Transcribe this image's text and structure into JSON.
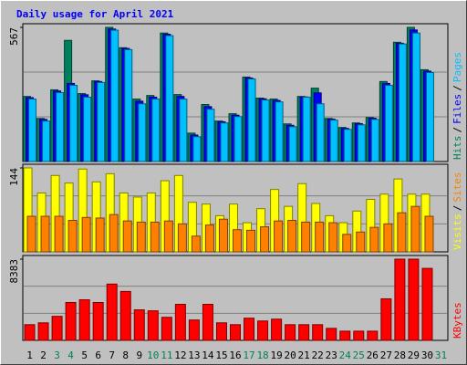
{
  "legend_separator": "/",
  "chart_data": [
    {
      "type": "bar",
      "title": "Daily usage for April 2021",
      "ylim": [
        0,
        567
      ],
      "yticks": [
        567
      ],
      "grid": [
        189,
        378
      ],
      "series": [
        {
          "name": "Hits",
          "color": "#00805c",
          "values": [
            275,
            182,
            303,
            512,
            287,
            341,
            567,
            481,
            264,
            279,
            543,
            283,
            120,
            241,
            171,
            202,
            357,
            268,
            264,
            159,
            275,
            310,
            182,
            144,
            163,
            186,
            338,
            504,
            567,
            388,
            0
          ]
        },
        {
          "name": "Files",
          "color": "#0000ff",
          "values": [
            270,
            178,
            298,
            330,
            282,
            338,
            560,
            478,
            255,
            272,
            538,
            275,
            112,
            232,
            168,
            196,
            353,
            265,
            258,
            153,
            273,
            290,
            179,
            140,
            160,
            183,
            330,
            500,
            556,
            382,
            0
          ]
        },
        {
          "name": "Pages",
          "color": "#00c0ff",
          "values": [
            264,
            171,
            291,
            322,
            272,
            334,
            555,
            473,
            244,
            264,
            532,
            264,
            105,
            221,
            163,
            190,
            349,
            260,
            252,
            147,
            272,
            244,
            175,
            136,
            155,
            178,
            322,
            497,
            543,
            376,
            0
          ]
        }
      ]
    },
    {
      "type": "bar",
      "ylim": [
        0,
        144
      ],
      "yticks": [
        144
      ],
      "grid": [
        48,
        96
      ],
      "series": [
        {
          "name": "Visits",
          "color": "#ffff00",
          "values": [
            144,
            101,
            131,
            118,
            142,
            120,
            134,
            101,
            94,
            101,
            122,
            131,
            85,
            82,
            62,
            82,
            50,
            74,
            107,
            78,
            117,
            83,
            62,
            50,
            70,
            90,
            99,
            125,
            99,
            99,
            0
          ]
        },
        {
          "name": "Sites",
          "color": "#ff8000",
          "values": [
            61,
            61,
            61,
            54,
            59,
            58,
            64,
            53,
            51,
            51,
            53,
            48,
            27,
            46,
            56,
            38,
            37,
            43,
            53,
            54,
            51,
            51,
            50,
            30,
            34,
            42,
            48,
            67,
            78,
            61,
            0
          ]
        }
      ]
    },
    {
      "type": "bar",
      "ylim": [
        0,
        8383
      ],
      "yticks": [
        8383
      ],
      "grid": [
        2794,
        5589
      ],
      "categories": [
        "1",
        "2",
        "3",
        "4",
        "5",
        "6",
        "7",
        "8",
        "9",
        "10",
        "11",
        "12",
        "13",
        "14",
        "15",
        "16",
        "17",
        "18",
        "19",
        "20",
        "21",
        "22",
        "23",
        "24",
        "25",
        "26",
        "27",
        "28",
        "29",
        "30",
        "31"
      ],
      "category_colors": [
        "#000000",
        "#000000",
        "#00805c",
        "#00805c",
        "#000000",
        "#000000",
        "#000000",
        "#000000",
        "#000000",
        "#00805c",
        "#00805c",
        "#000000",
        "#000000",
        "#000000",
        "#000000",
        "#000000",
        "#00805c",
        "#00805c",
        "#000000",
        "#000000",
        "#000000",
        "#000000",
        "#000000",
        "#00805c",
        "#00805c",
        "#000000",
        "#000000",
        "#000000",
        "#000000",
        "#000000",
        "#00805c"
      ],
      "series": [
        {
          "name": "KBytes",
          "color": "#ff0000",
          "values": [
            1620,
            1810,
            2480,
            3910,
            4190,
            3910,
            5810,
            5050,
            3150,
            3050,
            2380,
            3720,
            2100,
            3720,
            1810,
            1620,
            2290,
            2000,
            2190,
            1620,
            1620,
            1620,
            1240,
            950,
            950,
            950,
            4290,
            8383,
            8383,
            7430,
            0
          ]
        }
      ]
    }
  ]
}
